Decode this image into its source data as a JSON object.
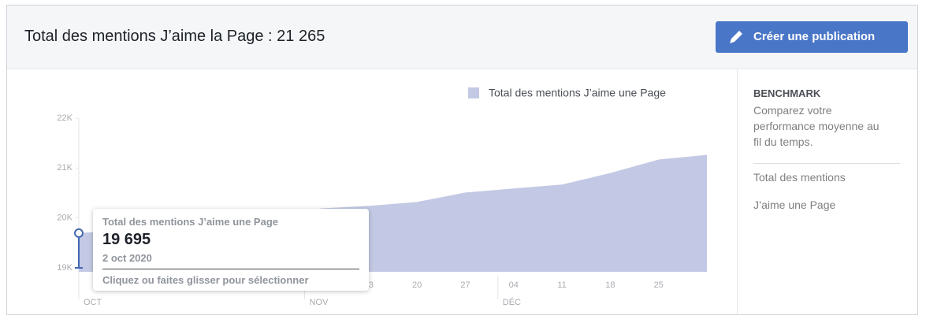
{
  "header": {
    "title": "Total des mentions J’aime la Page : 21 265",
    "button": "Créer une publication"
  },
  "chart_data": {
    "type": "area",
    "categories": [
      null,
      null,
      null,
      null,
      null,
      null,
      "13",
      "20",
      "27",
      "04",
      "11",
      "18",
      "25",
      null
    ],
    "month_labels": [
      "OCT",
      null,
      null,
      null,
      null,
      "NOV",
      null,
      null,
      null,
      "DÉC",
      null,
      null,
      null,
      null
    ],
    "series": [
      {
        "name": "Total des mentions J’aime une Page",
        "color": "#c3c9e4",
        "values": [
          19695,
          19760,
          19850,
          19950,
          20050,
          20190,
          20240,
          20320,
          20510,
          20590,
          20670,
          20900,
          21170,
          21265
        ]
      }
    ],
    "ylim": [
      18920,
      22000
    ],
    "yticks": [
      {
        "value": 19000,
        "label": "19K"
      },
      {
        "value": 20000,
        "label": "20K"
      },
      {
        "value": 21000,
        "label": "21K"
      },
      {
        "value": 22000,
        "label": "22K"
      }
    ],
    "legend": "top-right"
  },
  "tooltip": {
    "title": "Total des mentions J’aime une Page",
    "value": "19 695",
    "date": "2 oct 2020",
    "hint": "Cliquez ou faites glisser pour sélectionner"
  },
  "sidebar": {
    "heading": "BENCHMARK",
    "text": "Comparez votre performance moyenne au fil du temps.",
    "links": [
      "Total des mentions",
      "J’aime une Page"
    ]
  }
}
